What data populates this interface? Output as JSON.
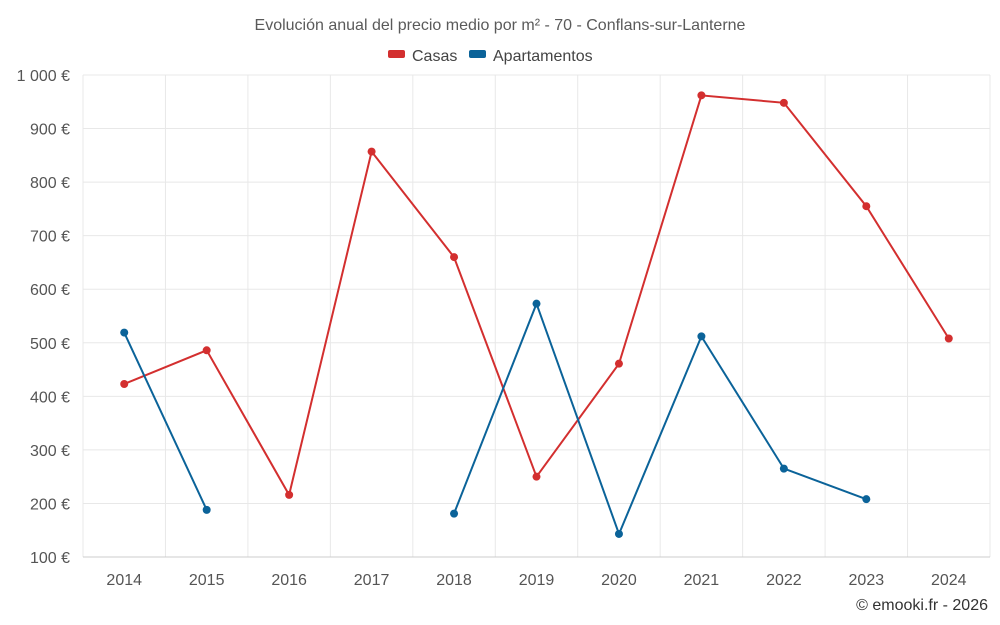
{
  "chart_data": {
    "type": "line",
    "title": "Evolución anual del precio medio por m² - 70 - Conflans-sur-Lanterne",
    "categories": [
      "2014",
      "2015",
      "2016",
      "2017",
      "2018",
      "2019",
      "2020",
      "2021",
      "2022",
      "2023",
      "2024"
    ],
    "ylim": [
      100,
      1000
    ],
    "yticks": [
      100,
      200,
      300,
      400,
      500,
      600,
      700,
      800,
      900,
      1000
    ],
    "ytick_labels": [
      "100 €",
      "200 €",
      "300 €",
      "400 €",
      "500 €",
      "600 €",
      "700 €",
      "800 €",
      "900 €",
      "1 000 €"
    ],
    "grid": true,
    "legend_position": "top-center",
    "series": [
      {
        "name": "Casas",
        "color": "#d32f2f",
        "values": [
          423,
          486,
          216,
          857,
          660,
          250,
          461,
          962,
          948,
          755,
          508
        ]
      },
      {
        "name": "Apartamentos",
        "color": "#0b6399",
        "values": [
          519,
          188,
          null,
          null,
          181,
          573,
          143,
          512,
          265,
          208,
          null
        ]
      }
    ]
  },
  "credit": "© emooki.fr - 2026"
}
